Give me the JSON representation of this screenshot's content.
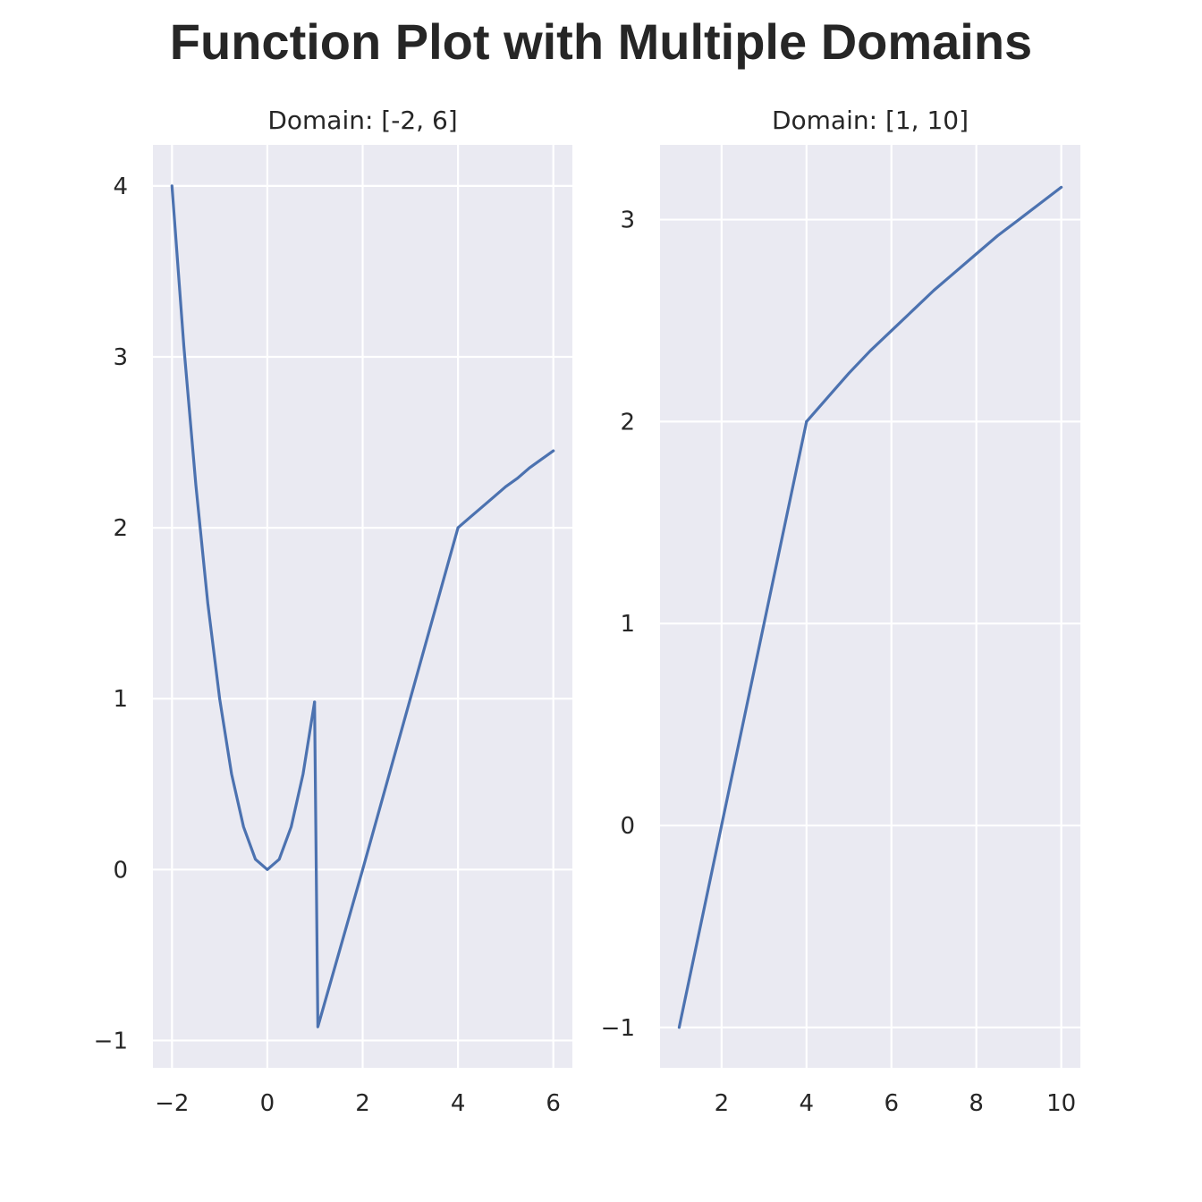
{
  "figure_title": "Function Plot with Multiple Domains",
  "colors": {
    "background": "#eaeaf2",
    "grid": "#ffffff",
    "line": "#4c72b0",
    "text": "#262626"
  },
  "chart_data": [
    {
      "type": "line",
      "title": "Domain: [-2, 6]",
      "xlabel": "",
      "ylabel": "",
      "xlim": [
        -2.4,
        6.4
      ],
      "ylim": [
        -1.16,
        4.24
      ],
      "xticks": [
        -2,
        0,
        2,
        4,
        6
      ],
      "xtick_labels": [
        "−2",
        "0",
        "2",
        "4",
        "6"
      ],
      "yticks": [
        -1,
        0,
        1,
        2,
        3,
        4
      ],
      "ytick_labels": [
        "−1",
        "0",
        "1",
        "2",
        "3",
        "4"
      ],
      "grid": true,
      "series": [
        {
          "pieces": [
            {
              "x": [
                -2,
                -1.75,
                -1.5,
                -1.25,
                -1,
                -0.75,
                -0.5,
                -0.25,
                0,
                0.25,
                0.5,
                0.75,
                0.99
              ],
              "y": [
                4,
                3.06,
                2.25,
                1.56,
                1,
                0.56,
                0.25,
                0.06,
                0,
                0.06,
                0.25,
                0.56,
                0.98
              ]
            },
            {
              "x": [
                0.99,
                1.06,
                2,
                3,
                4
              ],
              "y": [
                0.98,
                -0.92,
                0,
                1,
                2
              ]
            },
            {
              "x": [
                4,
                4.25,
                4.5,
                4.75,
                5,
                5.25,
                5.5,
                5.75,
                6
              ],
              "y": [
                2,
                2.06,
                2.12,
                2.18,
                2.24,
                2.29,
                2.35,
                2.4,
                2.45
              ]
            }
          ]
        }
      ]
    },
    {
      "type": "line",
      "title": "Domain: [1, 10]",
      "xlabel": "",
      "ylabel": "",
      "xlim": [
        0.55,
        10.45
      ],
      "ylim": [
        -1.2,
        3.37
      ],
      "xticks": [
        2,
        4,
        6,
        8,
        10
      ],
      "xtick_labels": [
        "2",
        "4",
        "6",
        "8",
        "10"
      ],
      "yticks": [
        -1,
        0,
        1,
        2,
        3
      ],
      "ytick_labels": [
        "−1",
        "0",
        "1",
        "2",
        "3"
      ],
      "grid": true,
      "series": [
        {
          "pieces": [
            {
              "x": [
                1,
                2,
                3,
                4
              ],
              "y": [
                -1,
                0,
                1,
                2
              ]
            },
            {
              "x": [
                4,
                4.5,
                5,
                5.5,
                6,
                6.5,
                7,
                7.5,
                8,
                8.5,
                9,
                9.5,
                10
              ],
              "y": [
                2,
                2.12,
                2.24,
                2.35,
                2.45,
                2.55,
                2.65,
                2.74,
                2.83,
                2.92,
                3,
                3.08,
                3.16
              ]
            }
          ]
        }
      ]
    }
  ]
}
